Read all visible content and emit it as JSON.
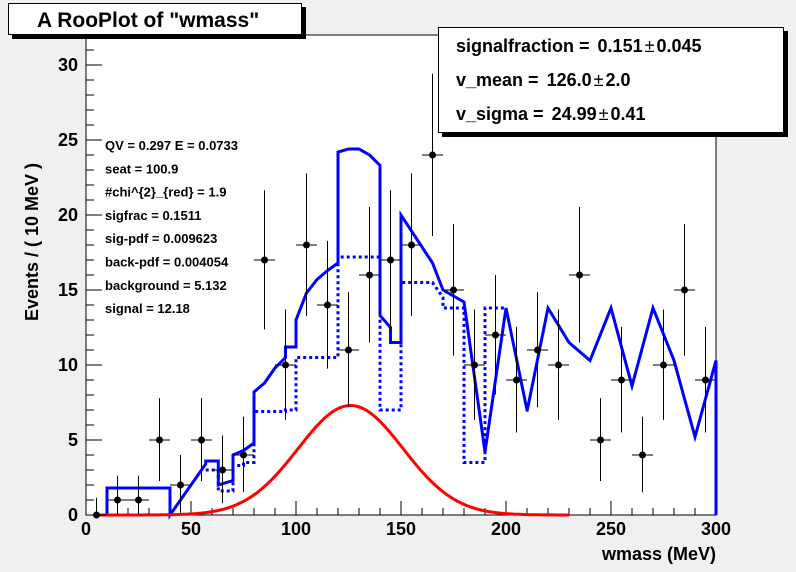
{
  "title": "A RooPlot of \"wmass\"",
  "stats": [
    {
      "name": "signalfraction = ",
      "value": "0.151",
      "error": "0.045"
    },
    {
      "name": "v_mean = ",
      "value": "126.0",
      "error": "2.0"
    },
    {
      "name": "v_sigma = ",
      "value": "24.99",
      "error": "0.41"
    }
  ],
  "pm_symbol": "±",
  "annotations": [
    "QV = 0.297 E = 0.0733",
    "seat = 100.9",
    "#chi^{2}_{red} = 1.9",
    "sigfrac = 0.1511",
    "sig-pdf = 0.009623",
    "back-pdf = 0.004054",
    "background = 5.132",
    "signal = 12.18"
  ],
  "chart_data": {
    "type": "scatter",
    "title": "A RooPlot of \"wmass\"",
    "xlabel": "wmass (MeV)",
    "ylabel": "Events / ( 10 MeV )",
    "xlim": [
      0,
      300
    ],
    "ylim": [
      0,
      32
    ],
    "x_ticks": [
      0,
      50,
      100,
      150,
      200,
      250,
      300
    ],
    "y_ticks": [
      0,
      5,
      10,
      15,
      20,
      25,
      30
    ],
    "grid": false,
    "colors": {
      "data": "#000000",
      "total": "#0000ff",
      "signal": "#ff0000",
      "frame": "#ffffff"
    },
    "data_points": {
      "x": [
        5,
        15,
        25,
        35,
        45,
        55,
        65,
        75,
        85,
        95,
        105,
        115,
        125,
        135,
        145,
        155,
        165,
        175,
        185,
        195,
        205,
        215,
        225,
        235,
        245,
        255,
        265,
        275,
        285,
        295
      ],
      "y": [
        0,
        1,
        1,
        5,
        2,
        5,
        3,
        4,
        17,
        10,
        18,
        14,
        11,
        16,
        17,
        18,
        24,
        15,
        10,
        12,
        9,
        11,
        10,
        16,
        5,
        9,
        4,
        10,
        15,
        9
      ],
      "x_bin_half_width": 5
    },
    "total_model": {
      "x": [
        5,
        10,
        10,
        40,
        40,
        57,
        57,
        63,
        63,
        70,
        70,
        75,
        75,
        80,
        80,
        85,
        90,
        95,
        95,
        100,
        100,
        105,
        110,
        115,
        120,
        120,
        125,
        130,
        135,
        140,
        140,
        145,
        145,
        150,
        150,
        165,
        170,
        170,
        180,
        180,
        190,
        190,
        200,
        200,
        210,
        210,
        220,
        220,
        230,
        230,
        240,
        240,
        250,
        250,
        260,
        260,
        270,
        270,
        280,
        280,
        290,
        290,
        300,
        300
      ],
      "y": [
        0,
        0,
        1.8,
        1.8,
        0,
        3.4,
        3.6,
        3.6,
        2.0,
        2.3,
        4.0,
        4.3,
        4.3,
        4.8,
        8.2,
        8.8,
        9.8,
        10.5,
        11.2,
        11.2,
        13.0,
        14.8,
        15.7,
        16.3,
        16.8,
        24.2,
        24.4,
        24.4,
        24.0,
        23.3,
        13.3,
        12.5,
        11.5,
        11.5,
        20.0,
        16.8,
        15.0,
        15.0,
        14.2,
        14.2,
        4.2,
        4.2,
        13.8,
        13.8,
        7.0,
        6.9,
        13.8,
        13.8,
        11.5,
        11.5,
        10.3,
        10.3,
        13.8,
        13.8,
        8.6,
        8.6,
        13.8,
        13.8,
        10.3,
        10.3,
        5.2,
        5.2,
        10.3,
        0
      ]
    },
    "background_model": {
      "x": [
        57,
        63,
        63,
        70,
        70,
        75,
        75,
        80,
        80,
        95,
        95,
        100,
        100,
        120,
        120,
        140,
        140,
        150,
        150,
        165,
        170,
        170,
        180,
        180,
        190,
        190,
        200
      ],
      "y": [
        3.0,
        3.0,
        1.6,
        1.6,
        3.3,
        3.3,
        3.5,
        3.5,
        6.9,
        6.9,
        7.0,
        7.0,
        10.5,
        10.5,
        17.2,
        17.2,
        7.0,
        7.0,
        15.5,
        15.5,
        14.5,
        13.8,
        13.8,
        3.5,
        3.5,
        13.8,
        13.8
      ]
    },
    "signal_curve": {
      "mean": 126.0,
      "sigma": 24.99,
      "amplitude": 7.3,
      "x_start": 5,
      "x_end": 230
    }
  }
}
